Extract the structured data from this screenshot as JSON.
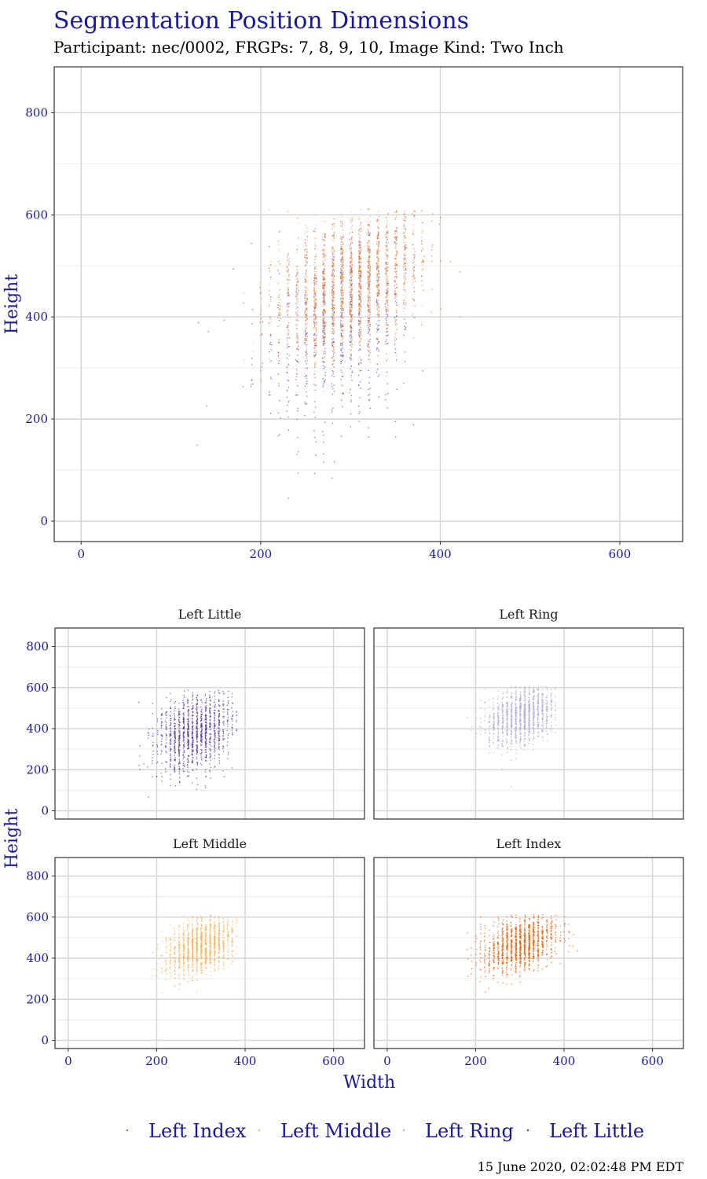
{
  "title": "Segmentation Position Dimensions",
  "subtitle": "Participant: nec/0002, FRGPs: 7, 8, 9, 10, Image Kind: Two Inch",
  "timestamp": "15 June 2020, 02:02:48 PM EDT",
  "colors": {
    "axis_text": "#1a1a99",
    "title": "#1a1a99",
    "grid_major": "#d4d4d4",
    "grid_minor": "#ececec",
    "panel_border": "#333333",
    "left_index": "#e6620f",
    "left_middle": "#f5b45c",
    "left_ring": "#b5a9d6",
    "left_little": "#5a3a97"
  },
  "legend": {
    "position": "bottom",
    "items": [
      {
        "key": "left_index",
        "label": "Left Index"
      },
      {
        "key": "left_middle",
        "label": "Left Middle"
      },
      {
        "key": "left_ring",
        "label": "Left Ring"
      },
      {
        "key": "left_little",
        "label": "Left Little"
      }
    ]
  },
  "chart_data": [
    {
      "type": "scatter",
      "xlabel": "",
      "ylabel": "Height",
      "xlim": [
        -30,
        670
      ],
      "ylim": [
        -40,
        890
      ],
      "xticks": [
        0,
        200,
        400,
        600
      ],
      "yticks": [
        0,
        200,
        400,
        600,
        800
      ],
      "grid": true,
      "series": [
        {
          "key": "left_little",
          "name": "Left Little",
          "center": [
            285,
            380
          ],
          "spread": [
            45,
            90
          ],
          "x_range": [
            115,
            380
          ],
          "y_range": [
            95,
            590
          ]
        },
        {
          "key": "left_ring",
          "name": "Left Ring",
          "center": [
            305,
            470
          ],
          "spread": [
            40,
            70
          ],
          "x_range": [
            175,
            380
          ],
          "y_range": [
            180,
            610
          ]
        },
        {
          "key": "left_middle",
          "name": "Left Middle",
          "center": [
            300,
            460
          ],
          "spread": [
            40,
            65
          ],
          "x_range": [
            180,
            380
          ],
          "y_range": [
            180,
            615
          ]
        },
        {
          "key": "left_index",
          "name": "Left Index",
          "center": [
            300,
            470
          ],
          "spread": [
            42,
            65
          ],
          "x_range": [
            175,
            440
          ],
          "y_range": [
            180,
            615
          ]
        }
      ]
    },
    {
      "type": "scatter",
      "facets": [
        "Left Little",
        "Left Ring",
        "Left Middle",
        "Left Index"
      ],
      "xlabel": "Width",
      "ylabel": "Height",
      "xlim": [
        -30,
        670
      ],
      "ylim": [
        -40,
        890
      ],
      "xticks": [
        0,
        200,
        400,
        600
      ],
      "yticks": [
        0,
        200,
        400,
        600,
        800
      ],
      "grid": true
    }
  ]
}
